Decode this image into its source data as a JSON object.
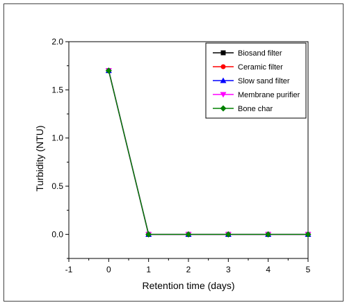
{
  "chart_data": {
    "type": "line",
    "xlabel": "Retention time (days)",
    "ylabel": "Turbidity (NTU)",
    "xlim": [
      -1,
      5
    ],
    "ylim": [
      -0.25,
      2.0
    ],
    "xticks": [
      "-1",
      "0",
      "1",
      "2",
      "3",
      "4",
      "5"
    ],
    "yticks": [
      "0.0",
      "0.5",
      "1.0",
      "1.5",
      "2.0"
    ],
    "grid": false,
    "legend_position": "top-right",
    "x": [
      0,
      1,
      2,
      3,
      4,
      5
    ],
    "series": [
      {
        "name": "Biosand filter",
        "color": "#000000",
        "marker": "square",
        "values": [
          1.7,
          0,
          0,
          0,
          0,
          0
        ]
      },
      {
        "name": "Ceramic filter",
        "color": "#ff0000",
        "marker": "circle",
        "values": [
          1.7,
          0,
          0,
          0,
          0,
          0
        ]
      },
      {
        "name": "Slow sand filter",
        "color": "#0000ff",
        "marker": "triangle-up",
        "values": [
          1.7,
          0,
          0,
          0,
          0,
          0
        ]
      },
      {
        "name": "Membrane purifier",
        "color": "#ff00ff",
        "marker": "triangle-down",
        "values": [
          1.7,
          0,
          0,
          0,
          0,
          0
        ]
      },
      {
        "name": "Bone char",
        "color": "#008000",
        "marker": "diamond",
        "values": [
          1.7,
          0,
          0,
          0,
          0,
          0
        ]
      }
    ]
  }
}
